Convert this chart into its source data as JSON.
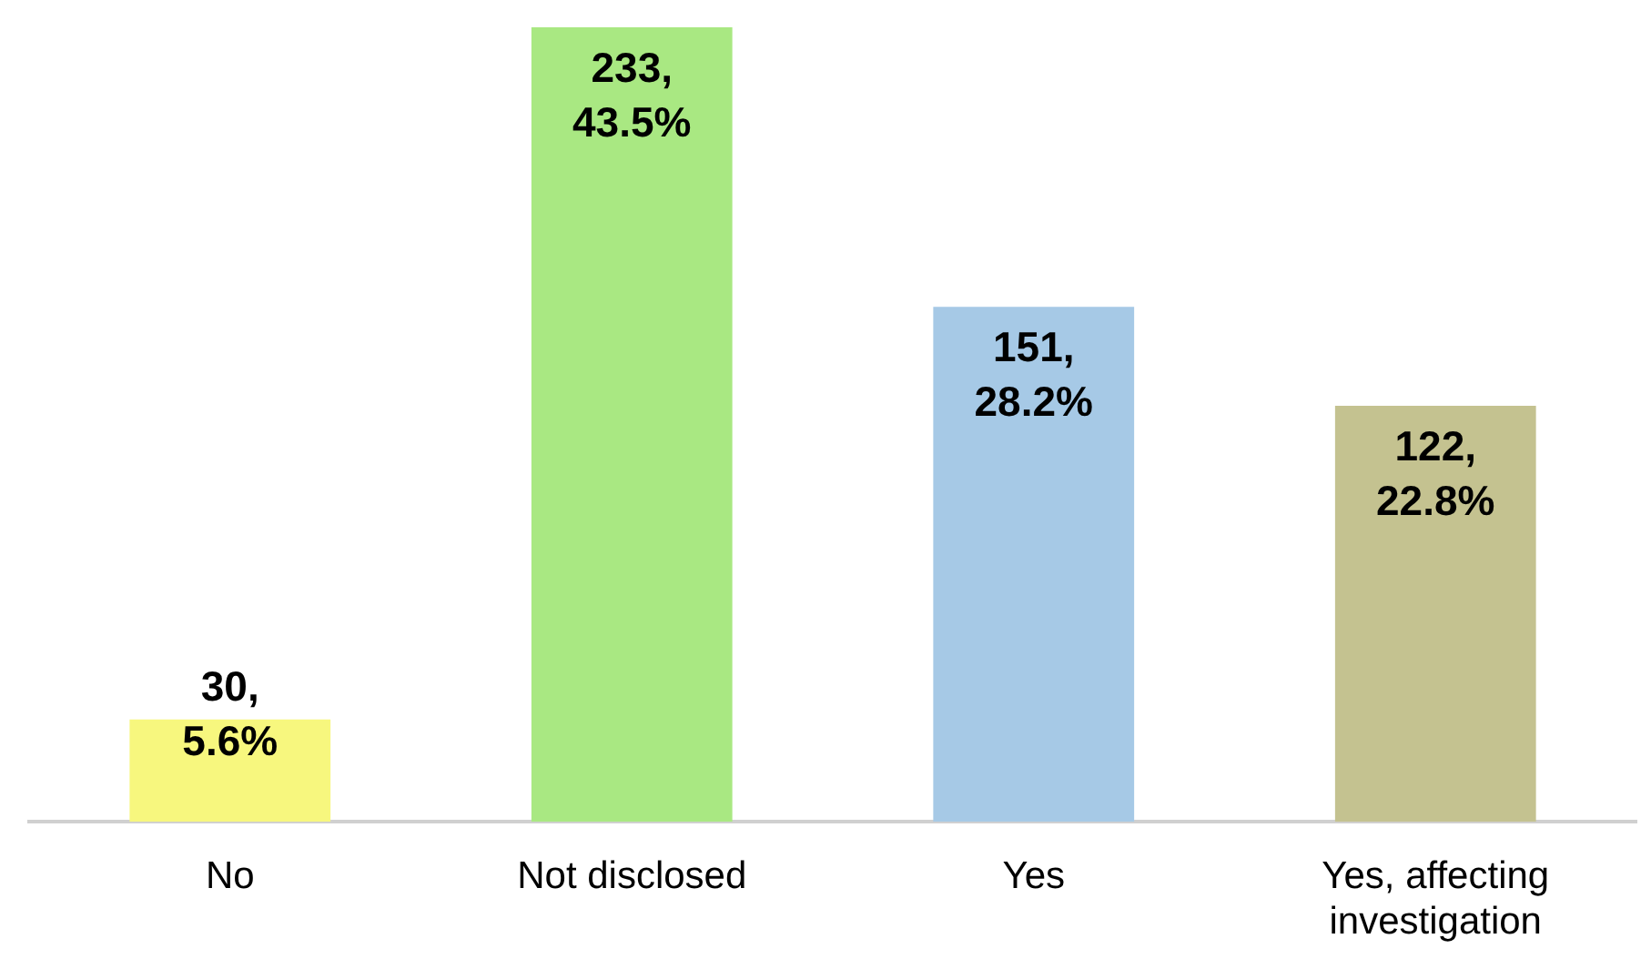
{
  "chart_data": {
    "type": "bar",
    "relative": false,
    "categories": [
      "No",
      "Not disclosed",
      "Yes",
      "Yes, affecting investigation"
    ],
    "values": [
      30,
      233,
      151,
      122
    ],
    "colors": [
      "#f7f77e",
      "#a9e882",
      "#a6c9e6",
      "#c4c290"
    ],
    "value_labels": [
      "30, 5.6%",
      "233, 43.5%",
      "151, 28.2%",
      "122, 22.8%"
    ],
    "grid": false,
    "legend": false
  }
}
